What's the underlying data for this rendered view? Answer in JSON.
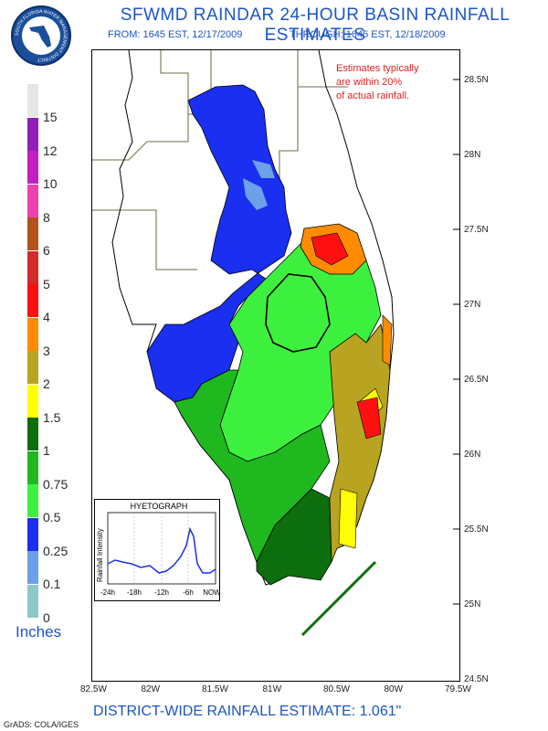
{
  "title": "SFWMD RAINDAR 24-HOUR BASIN RAINFALL ESTIMATES",
  "period": {
    "from": "FROM: 1645 EST, 12/17/2009",
    "through": "THROUGH: 1645 EST, 12/18/2009"
  },
  "logo_text": "SOUTH FLORIDA WATER MANAGEMENT DISTRICT",
  "note": [
    "Estimates typically",
    "are within 20%",
    "of actual rainfall."
  ],
  "scale": {
    "unit_label": "Inches",
    "levels": [
      {
        "label": "15",
        "color": "#e6e6e6"
      },
      {
        "label": "12",
        "color": "#8f1fb8"
      },
      {
        "label": "10",
        "color": "#c21fc2"
      },
      {
        "label": "8",
        "color": "#f040b0"
      },
      {
        "label": "6",
        "color": "#b3521c"
      },
      {
        "label": "5",
        "color": "#d42a2a"
      },
      {
        "label": "4",
        "color": "#ff1010"
      },
      {
        "label": "3",
        "color": "#ff8c00"
      },
      {
        "label": "2",
        "color": "#b8a420"
      },
      {
        "label": "1.5",
        "color": "#ffff00"
      },
      {
        "label": "1",
        "color": "#0c6e0c"
      },
      {
        "label": "0.75",
        "color": "#1fb81f"
      },
      {
        "label": "0.5",
        "color": "#3ef03e"
      },
      {
        "label": "0.25",
        "color": "#1a2ff0"
      },
      {
        "label": "0.1",
        "color": "#6da0ea"
      },
      {
        "label": "0",
        "color": "#8cc8c8"
      }
    ]
  },
  "lat_labels": [
    "28.5N",
    "28N",
    "27.5N",
    "27N",
    "26.5N",
    "26N",
    "25.5N",
    "25N",
    "24.5N"
  ],
  "lon_labels": [
    "82.5W",
    "82W",
    "81.5W",
    "81W",
    "80.5W",
    "80W",
    "79.5W"
  ],
  "hyetograph": {
    "title": "HYETOGRAPH",
    "ylabel": "Rainfall Intensity",
    "xticks": [
      "-24h",
      "-18h",
      "-12h",
      "-6h",
      "NOW"
    ]
  },
  "bottom_text": "DISTRICT-WIDE RAINFALL ESTIMATE: 1.061\"",
  "credit": "GrADS: COLA/IGES"
}
